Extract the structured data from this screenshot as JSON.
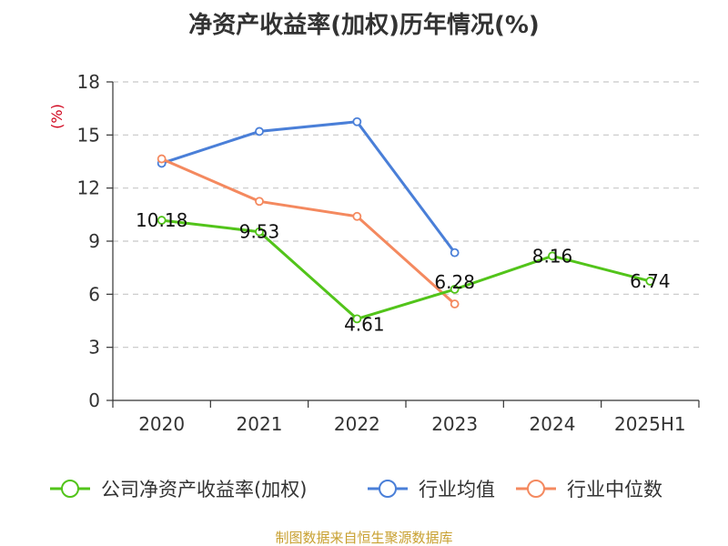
{
  "chart_data": {
    "type": "line",
    "title": "净资产收益率(加权)历年情况(%)",
    "ylabel": "(%)",
    "categories": [
      "2020",
      "2021",
      "2022",
      "2023",
      "2024",
      "2025H1"
    ],
    "yticks": [
      "0",
      "3",
      "6",
      "9",
      "12",
      "15",
      "18"
    ],
    "ylim": [
      0,
      18
    ],
    "grid": true,
    "legend": "bottom",
    "series": [
      {
        "name": "公司净资产收益率(加权)",
        "color": "#52c41a",
        "values": [
          10.18,
          9.53,
          4.61,
          6.28,
          8.16,
          6.74
        ],
        "labels": [
          "10.18",
          "9.53",
          "4.61",
          "6.28",
          "8.16",
          "6.74"
        ]
      },
      {
        "name": "行业均值",
        "color": "#4a7fd8",
        "values": [
          13.4,
          15.2,
          15.75,
          8.35,
          null,
          null
        ]
      },
      {
        "name": "行业中位数",
        "color": "#f4895f",
        "values": [
          13.65,
          11.25,
          10.4,
          5.45,
          null,
          null
        ]
      }
    ]
  },
  "source": "制图数据来自恒生聚源数据库"
}
